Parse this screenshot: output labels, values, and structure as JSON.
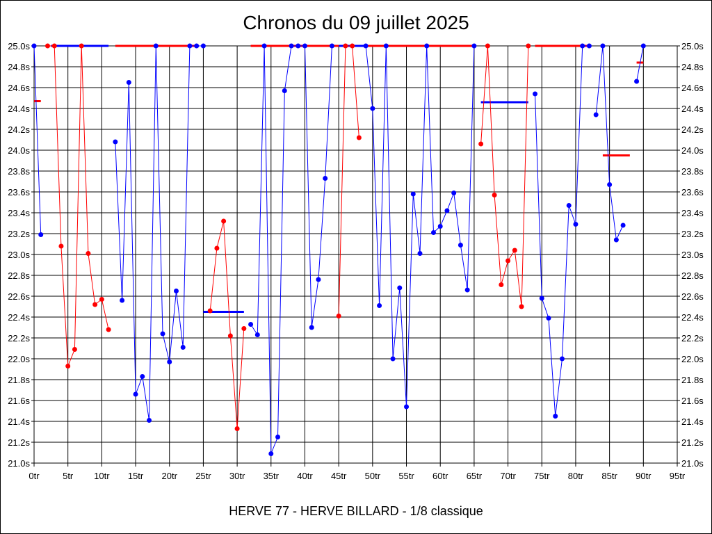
{
  "chart_data": {
    "type": "line",
    "title": "Chronos du 09 juillet 2025",
    "footer": "HERVE 77 - HERVE BILLARD - 1/8 classique",
    "xlabel": "",
    "ylabel": "",
    "xlim": [
      0,
      95
    ],
    "ylim": [
      21.0,
      25.0
    ],
    "x_ticks": [
      "0tr",
      "5tr",
      "10tr",
      "15tr",
      "20tr",
      "25tr",
      "30tr",
      "35tr",
      "40tr",
      "45tr",
      "50tr",
      "55tr",
      "60tr",
      "65tr",
      "70tr",
      "75tr",
      "80tr",
      "85tr",
      "90tr",
      "95tr"
    ],
    "y_ticks": [
      "21.0s",
      "21.2s",
      "21.4s",
      "21.6s",
      "21.8s",
      "22.0s",
      "22.2s",
      "22.4s",
      "22.6s",
      "22.8s",
      "23.0s",
      "23.2s",
      "23.4s",
      "23.6s",
      "23.8s",
      "24.0s",
      "24.2s",
      "24.4s",
      "24.6s",
      "24.8s",
      "25.0s"
    ],
    "grid": true,
    "colors": {
      "blue": "#0000ff",
      "red": "#ff0000"
    },
    "series": [
      {
        "color": "blue",
        "points": [
          [
            0,
            25.0
          ],
          [
            1,
            23.19
          ]
        ]
      },
      {
        "color": "red",
        "points": [
          [
            2,
            25.0
          ],
          [
            3,
            25.0
          ],
          [
            4,
            23.08
          ],
          [
            5,
            21.93
          ],
          [
            6,
            22.09
          ],
          [
            7,
            25.0
          ],
          [
            8,
            23.01
          ],
          [
            9,
            22.52
          ],
          [
            10,
            22.57
          ],
          [
            11,
            22.28
          ]
        ]
      },
      {
        "color": "blue",
        "points": [
          [
            12,
            24.08
          ],
          [
            13,
            22.56
          ],
          [
            14,
            24.65
          ],
          [
            15,
            21.66
          ],
          [
            16,
            21.83
          ],
          [
            17,
            21.41
          ],
          [
            18,
            25.0
          ],
          [
            19,
            22.24
          ],
          [
            20,
            21.97
          ],
          [
            21,
            22.65
          ],
          [
            22,
            22.11
          ],
          [
            23,
            25.0
          ],
          [
            24,
            25.0
          ],
          [
            25,
            25.0
          ]
        ]
      },
      {
        "color": "red",
        "points": [
          [
            26,
            22.46
          ],
          [
            27,
            23.06
          ],
          [
            28,
            23.32
          ],
          [
            29,
            22.22
          ],
          [
            30,
            21.33
          ],
          [
            31,
            22.29
          ]
        ]
      },
      {
        "color": "blue",
        "points": [
          [
            32,
            22.33
          ],
          [
            33,
            22.23
          ],
          [
            34,
            25.0
          ],
          [
            35,
            21.09
          ],
          [
            36,
            21.25
          ],
          [
            37,
            24.57
          ],
          [
            38,
            25.0
          ],
          [
            39,
            25.0
          ],
          [
            40,
            25.0
          ],
          [
            41,
            22.3
          ],
          [
            42,
            22.76
          ],
          [
            43,
            23.73
          ],
          [
            44,
            25.0
          ]
        ]
      },
      {
        "color": "red",
        "points": [
          [
            45,
            22.41
          ],
          [
            46,
            25.0
          ],
          [
            47,
            25.0
          ],
          [
            48,
            24.12
          ]
        ]
      },
      {
        "color": "blue",
        "points": [
          [
            49,
            25.0
          ],
          [
            50,
            24.4
          ],
          [
            51,
            22.51
          ],
          [
            52,
            25.0
          ],
          [
            53,
            22.0
          ],
          [
            54,
            22.68
          ],
          [
            55,
            21.54
          ],
          [
            56,
            23.58
          ],
          [
            57,
            23.01
          ],
          [
            58,
            25.0
          ],
          [
            59,
            23.21
          ],
          [
            60,
            23.27
          ],
          [
            61,
            23.42
          ],
          [
            62,
            23.59
          ],
          [
            63,
            23.09
          ],
          [
            64,
            22.66
          ],
          [
            65,
            25.0
          ]
        ]
      },
      {
        "color": "red",
        "points": [
          [
            66,
            24.06
          ],
          [
            67,
            25.0
          ],
          [
            68,
            23.57
          ],
          [
            69,
            22.71
          ],
          [
            70,
            22.94
          ],
          [
            71,
            23.04
          ],
          [
            72,
            22.5
          ],
          [
            73,
            25.0
          ]
        ]
      },
      {
        "color": "blue",
        "points": [
          [
            74,
            24.54
          ],
          [
            75,
            22.58
          ],
          [
            76,
            22.39
          ],
          [
            77,
            21.45
          ],
          [
            78,
            22.0
          ],
          [
            79,
            23.47
          ],
          [
            80,
            23.29
          ],
          [
            81,
            25.0
          ],
          [
            82,
            25.0
          ]
        ]
      },
      {
        "color": "blue",
        "points": [
          [
            83,
            24.34
          ],
          [
            84,
            25.0
          ],
          [
            85,
            23.67
          ],
          [
            86,
            23.14
          ],
          [
            87,
            23.28
          ]
        ]
      },
      {
        "color": "blue",
        "points": [
          [
            89,
            24.66
          ],
          [
            90,
            25.0
          ]
        ]
      }
    ],
    "average_lines": [
      {
        "color": "red",
        "x": [
          0,
          1
        ],
        "y": 24.47
      },
      {
        "color": "blue",
        "x": [
          2.5,
          11
        ],
        "y": 25.0
      },
      {
        "color": "red",
        "x": [
          12,
          24
        ],
        "y": 25.0
      },
      {
        "color": "blue",
        "x": [
          25,
          31
        ],
        "y": 22.45
      },
      {
        "color": "red",
        "x": [
          32,
          46
        ],
        "y": 25.0
      },
      {
        "color": "blue",
        "x": [
          45,
          49
        ],
        "y": 25.0
      },
      {
        "color": "red",
        "x": [
          49,
          65
        ],
        "y": 25.0
      },
      {
        "color": "blue",
        "x": [
          66,
          73
        ],
        "y": 24.46
      },
      {
        "color": "red",
        "x": [
          74,
          82
        ],
        "y": 25.0
      },
      {
        "color": "red",
        "x": [
          84,
          88
        ],
        "y": 23.95
      },
      {
        "color": "red",
        "x": [
          89,
          90
        ],
        "y": 24.84
      }
    ]
  }
}
